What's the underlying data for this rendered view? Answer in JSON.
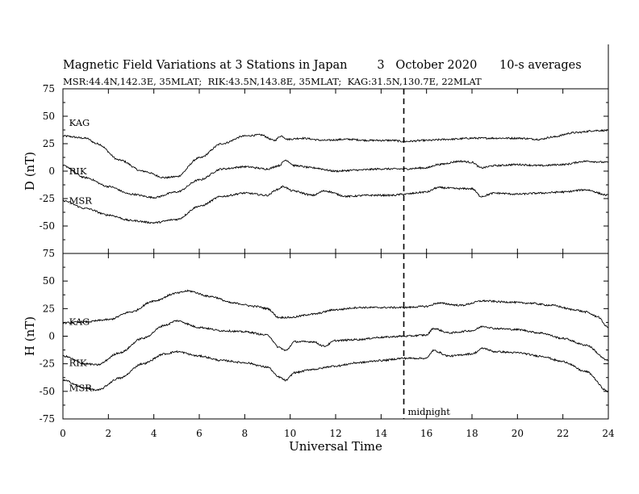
{
  "header": {
    "title": "Magnetic Field Variations at 3 Stations in Japan",
    "date": "3   October 2020",
    "averaging": "10-s averages",
    "stations_line": "MSR:44.4N,142.3E, 35MLAT;  RIK:43.5N,143.8E, 35MLAT;  KAG:31.5N,130.7E, 22MLAT"
  },
  "chart_data": {
    "type": "line",
    "xlabel": "Universal Time",
    "xlim": [
      0,
      24
    ],
    "x_ticks": [
      0,
      2,
      4,
      6,
      8,
      10,
      12,
      14,
      16,
      18,
      20,
      22,
      24
    ],
    "annotation": {
      "x": 15,
      "label": "midnight"
    },
    "panels": [
      {
        "ylabel": "D (nT)",
        "ylim": [
          -75,
          75
        ],
        "y_ticks": [
          75,
          50,
          25,
          0,
          -25,
          -50,
          -75
        ],
        "series": [
          {
            "name": "KAG",
            "x": [
              0,
              1,
              1.5,
              2.5,
              3.5,
              4.5,
              5,
              6,
              7,
              8,
              8.7,
              9.3,
              9.6,
              9.9,
              10.5,
              11.5,
              12.5,
              13.5,
              14.5,
              15,
              16,
              17,
              18,
              19,
              20,
              21,
              21.5,
              22.5,
              23.5,
              24
            ],
            "y": [
              32,
              30,
              25,
              10,
              0,
              -6,
              -5,
              12,
              25,
              32,
              33,
              28,
              32,
              29,
              30,
              28,
              29,
              28,
              28,
              27,
              28,
              29,
              30,
              30,
              30,
              29,
              31,
              35,
              37,
              37
            ]
          },
          {
            "name": "RIK",
            "x": [
              0,
              1,
              2,
              3,
              4,
              5,
              6,
              7,
              8,
              9,
              9.5,
              9.8,
              10.2,
              11,
              12,
              13,
              14,
              15,
              16,
              16.5,
              17.5,
              18,
              18.4,
              19,
              20,
              21,
              22,
              23,
              24
            ],
            "y": [
              5,
              -6,
              -14,
              -21,
              -24,
              -19,
              -8,
              2,
              4,
              2,
              5,
              10,
              5,
              3,
              0,
              1,
              2,
              2,
              3,
              6,
              9,
              8,
              3,
              5,
              6,
              5,
              6,
              9,
              8
            ]
          },
          {
            "name": "MSR",
            "x": [
              0,
              1,
              2,
              3,
              4,
              5,
              6,
              7,
              8,
              9,
              9.4,
              9.7,
              10.1,
              11,
              11.5,
              12.5,
              13.5,
              14.5,
              15,
              16,
              16.5,
              17.5,
              18,
              18.4,
              19,
              20,
              21,
              22,
              23,
              24
            ],
            "y": [
              -27,
              -34,
              -40,
              -45,
              -47,
              -44,
              -32,
              -23,
              -20,
              -22,
              -17,
              -14,
              -18,
              -22,
              -18,
              -23,
              -22,
              -22,
              -21,
              -19,
              -15,
              -16,
              -16,
              -23,
              -20,
              -21,
              -20,
              -19,
              -17,
              -22
            ]
          }
        ]
      },
      {
        "ylabel": "H (nT)",
        "ylim": [
          -75,
          75
        ],
        "y_ticks": [
          75,
          50,
          25,
          0,
          -25,
          -50,
          -75
        ],
        "series": [
          {
            "name": "KAG",
            "x": [
              0,
              1,
              2,
              3,
              4,
              5,
              5.5,
              6.5,
              7.5,
              8.5,
              9,
              9.5,
              10,
              11,
              12,
              13,
              14,
              15,
              16,
              16.5,
              17.5,
              18.5,
              19.5,
              20.5,
              21.5,
              22.5,
              23,
              23.5,
              24
            ],
            "y": [
              12,
              13,
              15,
              22,
              32,
              39,
              41,
              36,
              30,
              27,
              25,
              17,
              17,
              20,
              24,
              26,
              26,
              26,
              27,
              30,
              28,
              32,
              31,
              30,
              28,
              24,
              22,
              18,
              8
            ]
          },
          {
            "name": "RIK",
            "x": [
              0,
              1,
              1.5,
              2.5,
              3.5,
              4.5,
              5,
              6,
              7,
              8,
              9,
              9.5,
              9.8,
              10.2,
              11,
              11.5,
              12,
              13,
              14,
              15,
              16,
              16.3,
              17,
              18,
              18.5,
              19,
              20,
              21,
              22,
              23,
              24
            ],
            "y": [
              -18,
              -25,
              -26,
              -15,
              -2,
              10,
              14,
              8,
              5,
              4,
              1,
              -10,
              -13,
              -5,
              -5,
              -9,
              -4,
              -3,
              -1,
              0,
              1,
              7,
              3,
              5,
              9,
              7,
              6,
              3,
              -2,
              -8,
              -22
            ]
          },
          {
            "name": "MSR",
            "x": [
              0,
              1,
              1.5,
              2.5,
              3.5,
              4.5,
              5,
              6,
              7,
              8,
              9,
              9.5,
              9.8,
              10.2,
              11,
              12,
              13,
              14,
              15,
              16,
              16.3,
              17,
              18,
              18.5,
              19,
              20,
              21,
              22,
              23,
              24
            ],
            "y": [
              -40,
              -47,
              -49,
              -38,
              -25,
              -16,
              -14,
              -18,
              -22,
              -24,
              -28,
              -37,
              -40,
              -33,
              -30,
              -27,
              -24,
              -22,
              -20,
              -20,
              -13,
              -18,
              -16,
              -11,
              -14,
              -15,
              -18,
              -23,
              -32,
              -50
            ]
          }
        ]
      }
    ]
  }
}
